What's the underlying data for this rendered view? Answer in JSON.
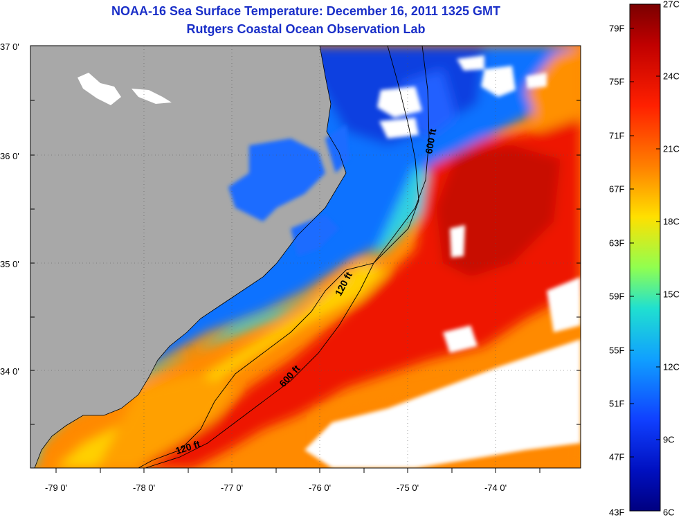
{
  "title_line1": "NOAA-16 Sea Surface Temperature:  December 16, 2011 1325 GMT",
  "title_line2": "Rutgers Coastal Ocean Observation Lab",
  "lat_labels": [
    "37 0'",
    "36 0'",
    "35 0'",
    "34 0'"
  ],
  "lon_labels": [
    "-79 0'",
    "-78 0'",
    "-77 0'",
    "-76 0'",
    "-75 0'",
    "-74 0'"
  ],
  "contours": {
    "c1": "600 ft",
    "c2": "120 ft",
    "c3": "600 ft",
    "c4": "120 ft"
  },
  "colorbar": {
    "fahrenheit": [
      "79F",
      "75F",
      "71F",
      "67F",
      "63F",
      "59F",
      "55F",
      "51F",
      "47F",
      "43F"
    ],
    "celsius": [
      "27C",
      "24C",
      "21C",
      "18C",
      "15C",
      "12C",
      "9C",
      "6C"
    ]
  },
  "colors": {
    "land": "#a8a8a8",
    "title": "#1a2fc8",
    "cloud": "#ffffff"
  }
}
